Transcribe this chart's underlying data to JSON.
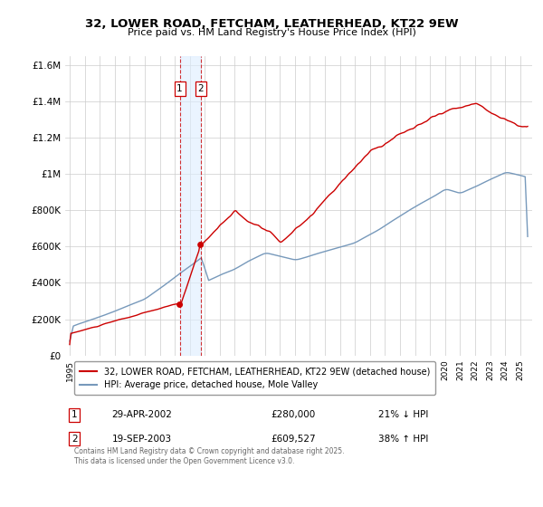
{
  "title": "32, LOWER ROAD, FETCHAM, LEATHERHEAD, KT22 9EW",
  "subtitle": "Price paid vs. HM Land Registry's House Price Index (HPI)",
  "ylabel_ticks": [
    "£0",
    "£200K",
    "£400K",
    "£600K",
    "£800K",
    "£1M",
    "£1.2M",
    "£1.4M",
    "£1.6M"
  ],
  "ytick_vals": [
    0,
    200000,
    400000,
    600000,
    800000,
    1000000,
    1200000,
    1400000,
    1600000
  ],
  "ylim": [
    0,
    1650000
  ],
  "xlim_start": 1994.7,
  "xlim_end": 2025.8,
  "legend1": "32, LOWER ROAD, FETCHAM, LEATHERHEAD, KT22 9EW (detached house)",
  "legend2": "HPI: Average price, detached house, Mole Valley",
  "transaction1_date": "29-APR-2002",
  "transaction1_price": "£280,000",
  "transaction1_hpi": "21% ↓ HPI",
  "transaction1_x": 2002.33,
  "transaction1_y": 280000,
  "transaction2_date": "19-SEP-2003",
  "transaction2_price": "£609,527",
  "transaction2_hpi": "38% ↑ HPI",
  "transaction2_x": 2003.72,
  "transaction2_y": 609527,
  "footer": "Contains HM Land Registry data © Crown copyright and database right 2025.\nThis data is licensed under the Open Government Licence v3.0.",
  "line_red": "#cc0000",
  "line_blue": "#7799bb",
  "bg_color": "#ffffff",
  "grid_color": "#cccccc",
  "vline_color": "#cc0000",
  "vspan_color": "#ddeeff"
}
